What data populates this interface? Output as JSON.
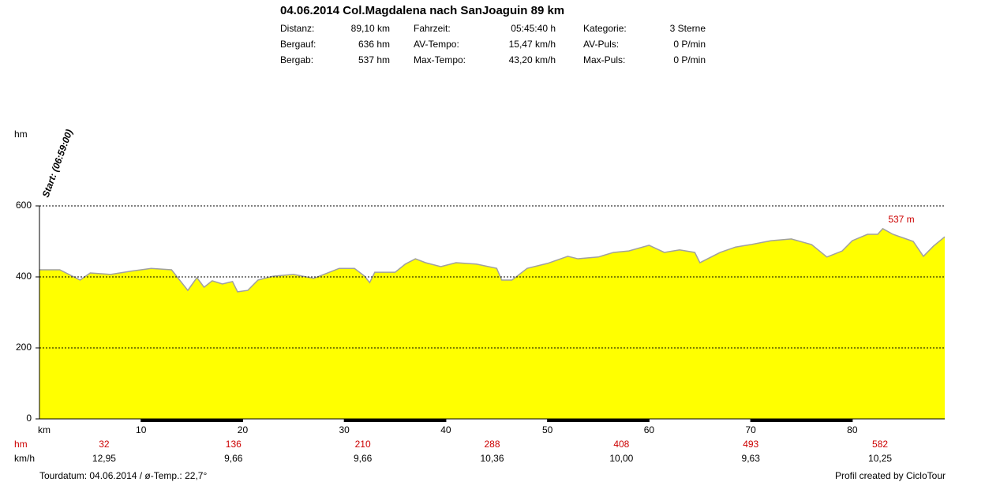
{
  "chart_data": {
    "type": "area",
    "title": "04.06.2014 Col.Magdalena nach SanJoaguin 89 km",
    "stats": [
      [
        [
          "Distanz:",
          "89,10 km"
        ],
        [
          "Fahrzeit:",
          "05:45:40 h"
        ],
        [
          "Kategorie:",
          "3 Sterne"
        ]
      ],
      [
        [
          "Bergauf:",
          "636 hm"
        ],
        [
          "AV-Tempo:",
          "15,47 km/h"
        ],
        [
          "AV-Puls:",
          "0 P/min"
        ]
      ],
      [
        [
          "Bergab:",
          "537 hm"
        ],
        [
          "Max-Tempo:",
          "43,20 km/h"
        ],
        [
          "Max-Puls:",
          "0 P/min"
        ]
      ]
    ],
    "y_label": "hm",
    "start_label": "Start: (06:59:00)",
    "annotation": "537 m",
    "x_label": "km",
    "row_hm_label": "hm",
    "row_kmh_label": "km/h",
    "segment_hm": [
      32,
      136,
      210,
      288,
      408,
      493,
      582
    ],
    "segment_kmh": [
      "12,95",
      "9,66",
      "9,66",
      "10,36",
      "10,00",
      "9,63",
      "10,25"
    ],
    "footer_left": "Tourdatum: 04.06.2014  /  ø-Temp.: 22,7°",
    "footer_right": "Profil created by CicloTour",
    "color": "#ffff00",
    "line_color": "#a0a0a0",
    "xlim": [
      0,
      89.1
    ],
    "xticks": [
      10,
      20,
      30,
      40,
      50,
      60,
      70,
      80
    ],
    "ylim": [
      0,
      600
    ],
    "yticks": [
      0,
      200,
      400,
      600
    ],
    "grid": true,
    "x": [
      0,
      2,
      4,
      5,
      7,
      9,
      11,
      13,
      14.6,
      15.5,
      16.2,
      17,
      18,
      19,
      19.5,
      20.5,
      21.5,
      23,
      25,
      27,
      28,
      29.5,
      31,
      32,
      32.5,
      33,
      35,
      36,
      37,
      38,
      39.5,
      41,
      43,
      45,
      45.5,
      46.5,
      48,
      50,
      52,
      53,
      55,
      56.5,
      58,
      60,
      61.5,
      63,
      64.5,
      65,
      67,
      68.5,
      70,
      72,
      74,
      76,
      77.5,
      79,
      80,
      81.5,
      82.5,
      83,
      84,
      86,
      87,
      88,
      89.1
    ],
    "y": [
      420,
      420,
      391,
      411,
      407,
      416,
      424,
      420,
      362,
      398,
      371,
      389,
      380,
      387,
      358,
      362,
      391,
      402,
      407,
      396,
      407,
      424,
      424,
      402,
      384,
      413,
      413,
      436,
      451,
      440,
      429,
      440,
      436,
      424,
      391,
      391,
      424,
      438,
      458,
      451,
      456,
      469,
      473,
      489,
      469,
      476,
      469,
      440,
      469,
      484,
      491,
      502,
      507,
      491,
      456,
      473,
      502,
      520,
      520,
      536,
      520,
      500,
      458,
      487,
      513
    ]
  }
}
